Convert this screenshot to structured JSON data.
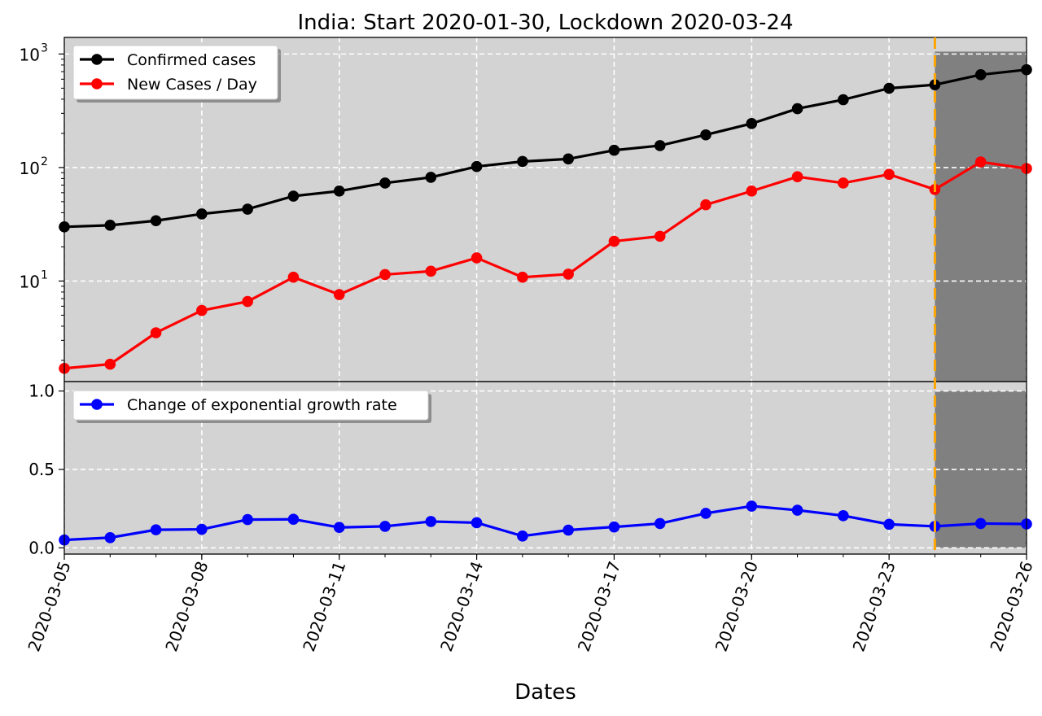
{
  "chart_data": {
    "title": "India: Start 2020-01-30, Lockdown 2020-03-24",
    "xlabel": "Dates",
    "x_dates": [
      "2020-03-05",
      "2020-03-06",
      "2020-03-07",
      "2020-03-08",
      "2020-03-09",
      "2020-03-10",
      "2020-03-11",
      "2020-03-12",
      "2020-03-13",
      "2020-03-14",
      "2020-03-15",
      "2020-03-16",
      "2020-03-17",
      "2020-03-18",
      "2020-03-19",
      "2020-03-20",
      "2020-03-21",
      "2020-03-22",
      "2020-03-23",
      "2020-03-24",
      "2020-03-25",
      "2020-03-26"
    ],
    "x_tick_labels": [
      "2020-03-05",
      "2020-03-08",
      "2020-03-11",
      "2020-03-14",
      "2020-03-17",
      "2020-03-20",
      "2020-03-23",
      "2020-03-26"
    ],
    "lockdown_date": "2020-03-24",
    "colors": {
      "background": "#d3d3d3",
      "shade": "#808080",
      "grid": "#ffffff",
      "lockdown_line": "#ffa500",
      "confirmed": "#000000",
      "new_cases": "#ff0000",
      "growth": "#0000ff"
    },
    "top": {
      "type": "line",
      "yscale": "log",
      "ylim": [
        1.3,
        1400
      ],
      "y_ticks": [
        10,
        100,
        1000
      ],
      "y_tick_bases": [
        "10",
        "10",
        "10"
      ],
      "y_tick_exps": [
        "1",
        "2",
        "3"
      ],
      "legend_position": "top-left",
      "series": [
        {
          "name": "Confirmed cases",
          "color": "#000000",
          "values": [
            30,
            31,
            34,
            39,
            43,
            56,
            62,
            73,
            82,
            102,
            113,
            119,
            142,
            156,
            194,
            244,
            330,
            396,
            499,
            536,
            657,
            727
          ]
        },
        {
          "name": "New Cases / Day",
          "color": "#ff0000",
          "values": [
            1.7,
            1.85,
            3.5,
            5.5,
            6.6,
            10.8,
            7.6,
            11.4,
            12.2,
            16,
            10.8,
            11.5,
            22.4,
            24.8,
            47,
            62,
            83,
            73,
            87,
            64,
            112,
            98
          ]
        }
      ]
    },
    "bottom": {
      "type": "line",
      "yscale": "linear",
      "ylim": [
        -0.04,
        1.06
      ],
      "y_ticks": [
        0.0,
        0.5,
        1.0
      ],
      "y_tick_labels": [
        "0.0",
        "0.5",
        "1.0"
      ],
      "legend_position": "top-left",
      "series": [
        {
          "name": "Change of exponential growth rate",
          "color": "#0000ff",
          "values": [
            0.05,
            0.065,
            0.115,
            0.118,
            0.18,
            0.182,
            0.13,
            0.137,
            0.168,
            0.16,
            0.075,
            0.113,
            0.133,
            0.155,
            0.22,
            0.266,
            0.24,
            0.205,
            0.15,
            0.137,
            0.155,
            0.152
          ]
        }
      ]
    }
  }
}
